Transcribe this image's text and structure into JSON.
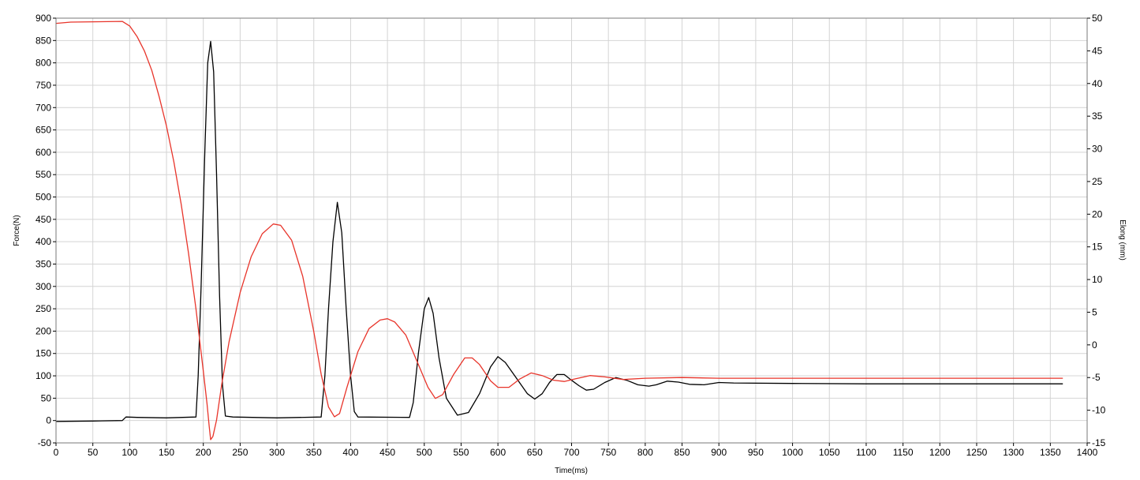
{
  "chart_data": {
    "type": "line",
    "xlabel": "Time(ms)",
    "ylabel": "Force(N)",
    "y2label": "Elong (mm)",
    "xlim": [
      0,
      1400
    ],
    "ylim": [
      -50,
      900
    ],
    "y2lim": [
      -15,
      50
    ],
    "xticks": [
      0,
      50,
      100,
      150,
      200,
      250,
      300,
      350,
      400,
      450,
      500,
      550,
      600,
      650,
      700,
      750,
      800,
      850,
      900,
      950,
      1000,
      1050,
      1100,
      1150,
      1200,
      1250,
      1300,
      1350,
      1400
    ],
    "yticks": [
      -50,
      0,
      50,
      100,
      150,
      200,
      250,
      300,
      350,
      400,
      450,
      500,
      550,
      600,
      650,
      700,
      750,
      800,
      850,
      900
    ],
    "y2ticks": [
      -15,
      -10,
      -5,
      0,
      5,
      10,
      15,
      20,
      25,
      30,
      35,
      40,
      45,
      50
    ],
    "grid": true,
    "series": [
      {
        "color": "#000000",
        "axis": "left",
        "points": [
          [
            0,
            -2
          ],
          [
            50,
            -1
          ],
          [
            90,
            0
          ],
          [
            95,
            8
          ],
          [
            110,
            7
          ],
          [
            150,
            6
          ],
          [
            190,
            8
          ],
          [
            193,
            100
          ],
          [
            197,
            300
          ],
          [
            202,
            600
          ],
          [
            206,
            800
          ],
          [
            210,
            848
          ],
          [
            214,
            780
          ],
          [
            218,
            550
          ],
          [
            222,
            280
          ],
          [
            226,
            80
          ],
          [
            230,
            10
          ],
          [
            240,
            8
          ],
          [
            300,
            6
          ],
          [
            360,
            8
          ],
          [
            365,
            100
          ],
          [
            370,
            250
          ],
          [
            376,
            400
          ],
          [
            382,
            488
          ],
          [
            388,
            420
          ],
          [
            394,
            250
          ],
          [
            400,
            100
          ],
          [
            405,
            20
          ],
          [
            410,
            8
          ],
          [
            480,
            7
          ],
          [
            485,
            40
          ],
          [
            492,
            150
          ],
          [
            500,
            250
          ],
          [
            506,
            275
          ],
          [
            512,
            240
          ],
          [
            520,
            140
          ],
          [
            530,
            50
          ],
          [
            545,
            12
          ],
          [
            560,
            18
          ],
          [
            575,
            60
          ],
          [
            590,
            120
          ],
          [
            600,
            143
          ],
          [
            610,
            130
          ],
          [
            625,
            95
          ],
          [
            640,
            60
          ],
          [
            650,
            48
          ],
          [
            660,
            60
          ],
          [
            670,
            85
          ],
          [
            680,
            103
          ],
          [
            690,
            103
          ],
          [
            700,
            90
          ],
          [
            710,
            78
          ],
          [
            720,
            68
          ],
          [
            730,
            70
          ],
          [
            745,
            85
          ],
          [
            760,
            96
          ],
          [
            775,
            90
          ],
          [
            790,
            80
          ],
          [
            805,
            77
          ],
          [
            815,
            80
          ],
          [
            830,
            88
          ],
          [
            845,
            86
          ],
          [
            860,
            81
          ],
          [
            880,
            80
          ],
          [
            900,
            85
          ],
          [
            920,
            84
          ],
          [
            1000,
            83
          ],
          [
            1100,
            82
          ],
          [
            1200,
            82
          ],
          [
            1300,
            82
          ],
          [
            1367,
            82
          ]
        ]
      },
      {
        "color": "#e8342a",
        "axis": "right",
        "points": [
          [
            0,
            49.2
          ],
          [
            20,
            49.4
          ],
          [
            90,
            49.5
          ],
          [
            100,
            48.8
          ],
          [
            110,
            47.2
          ],
          [
            120,
            45
          ],
          [
            130,
            42
          ],
          [
            140,
            38
          ],
          [
            150,
            33.5
          ],
          [
            160,
            28
          ],
          [
            170,
            21.5
          ],
          [
            180,
            14
          ],
          [
            190,
            5.5
          ],
          [
            200,
            -4
          ],
          [
            205,
            -9
          ],
          [
            208,
            -12.5
          ],
          [
            210,
            -14.5
          ],
          [
            213,
            -14
          ],
          [
            218,
            -11.5
          ],
          [
            225,
            -6
          ],
          [
            235,
            0.5
          ],
          [
            250,
            8
          ],
          [
            265,
            13.5
          ],
          [
            280,
            17
          ],
          [
            295,
            18.5
          ],
          [
            305,
            18.3
          ],
          [
            320,
            16
          ],
          [
            335,
            10.5
          ],
          [
            350,
            2
          ],
          [
            360,
            -4.5
          ],
          [
            370,
            -9.5
          ],
          [
            378,
            -11
          ],
          [
            385,
            -10.5
          ],
          [
            395,
            -6.5
          ],
          [
            410,
            -1
          ],
          [
            425,
            2.5
          ],
          [
            440,
            3.8
          ],
          [
            450,
            4
          ],
          [
            460,
            3.5
          ],
          [
            475,
            1.5
          ],
          [
            490,
            -2.5
          ],
          [
            505,
            -6.5
          ],
          [
            515,
            -8.2
          ],
          [
            525,
            -7.6
          ],
          [
            540,
            -4.5
          ],
          [
            555,
            -2
          ],
          [
            565,
            -2
          ],
          [
            575,
            -3
          ],
          [
            590,
            -5.5
          ],
          [
            600,
            -6.5
          ],
          [
            615,
            -6.5
          ],
          [
            630,
            -5.2
          ],
          [
            645,
            -4.3
          ],
          [
            660,
            -4.7
          ],
          [
            675,
            -5.4
          ],
          [
            690,
            -5.6
          ],
          [
            705,
            -5.2
          ],
          [
            725,
            -4.7
          ],
          [
            745,
            -4.9
          ],
          [
            770,
            -5.3
          ],
          [
            800,
            -5.1
          ],
          [
            850,
            -5
          ],
          [
            900,
            -5.1
          ],
          [
            1000,
            -5.1
          ],
          [
            1100,
            -5.1
          ],
          [
            1200,
            -5.1
          ],
          [
            1300,
            -5.1
          ],
          [
            1367,
            -5.1
          ]
        ]
      }
    ]
  }
}
